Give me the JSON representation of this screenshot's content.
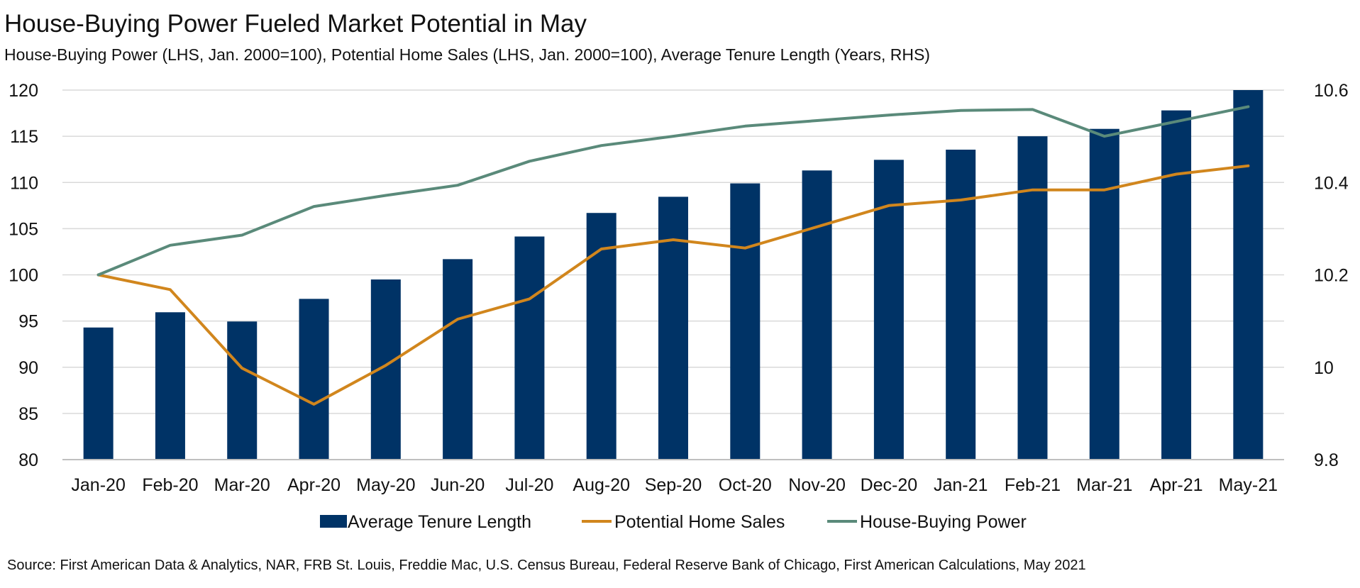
{
  "title": "House-Buying Power Fueled Market Potential in May",
  "subtitle": "House-Buying Power (LHS, Jan. 2000=100), Potential Home Sales (LHS, Jan. 2000=100), Average Tenure Length (Years, RHS)",
  "source": "Source: First American Data & Analytics, NAR, FRB St. Louis, Freddie Mac, U.S. Census Bureau, Federal Reserve Bank of Chicago, First American Calculations, May 2021",
  "colors": {
    "tenure": "#003366",
    "sales": "#D1861D",
    "power": "#5A8A7A",
    "grid": "#D9D9D9",
    "axis": "#BFBFBF"
  },
  "chart_data": {
    "type": "bar+line",
    "categories": [
      "Jan-20",
      "Feb-20",
      "Mar-20",
      "Apr-20",
      "May-20",
      "Jun-20",
      "Jul-20",
      "Aug-20",
      "Sep-20",
      "Oct-20",
      "Nov-20",
      "Dec-20",
      "Jan-21",
      "Feb-21",
      "Mar-21",
      "Apr-21",
      "May-21"
    ],
    "left_axis": {
      "min": 80,
      "max": 120,
      "ticks": [
        "80",
        "85",
        "90",
        "95",
        "100",
        "105",
        "110",
        "115",
        "120"
      ]
    },
    "right_axis": {
      "min": 9.8,
      "max": 10.6,
      "ticks": [
        "9.8",
        "10",
        "10.2",
        "10.4",
        "10.6"
      ]
    },
    "series": [
      {
        "name": "Average Tenure Length",
        "type": "bar",
        "axis": "right",
        "values": [
          10.086,
          10.119,
          10.099,
          10.148,
          10.19,
          10.234,
          10.283,
          10.334,
          10.369,
          10.398,
          10.426,
          10.449,
          10.471,
          10.5,
          10.516,
          10.556,
          10.6
        ]
      },
      {
        "name": "Potential Home Sales",
        "type": "line",
        "axis": "left",
        "values": [
          100.0,
          98.4,
          89.9,
          86.0,
          90.2,
          95.2,
          97.4,
          102.8,
          103.8,
          102.9,
          105.2,
          107.5,
          108.1,
          109.2,
          109.2,
          110.9,
          111.8
        ]
      },
      {
        "name": "House-Buying Power",
        "type": "line",
        "axis": "left",
        "values": [
          100.0,
          103.2,
          104.3,
          107.4,
          108.6,
          109.7,
          112.3,
          114.0,
          115.0,
          116.1,
          116.7,
          117.3,
          117.8,
          117.9,
          115.0,
          116.6,
          118.2
        ]
      }
    ],
    "legend_position": "bottom",
    "grid": true
  }
}
